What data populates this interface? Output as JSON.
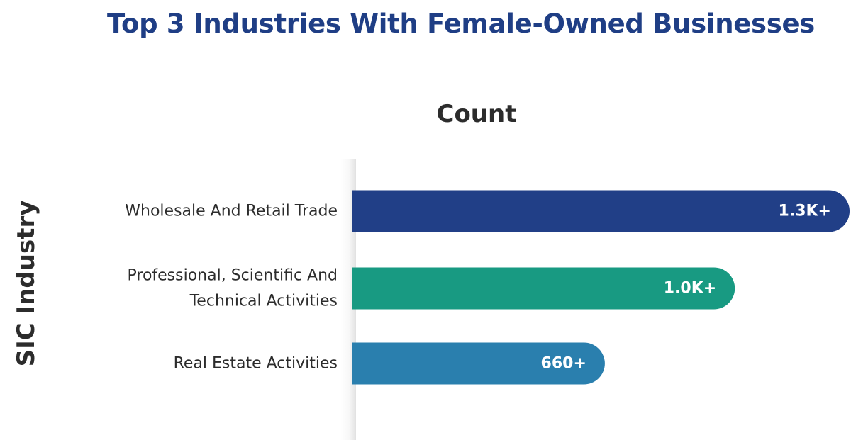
{
  "chart_data": {
    "type": "bar",
    "orientation": "horizontal",
    "title": "Top 3 Industries With Female-Owned Businesses",
    "xlabel": "Count",
    "ylabel": "SIC Industry",
    "categories": [
      [
        "Wholesale And Retail Trade"
      ],
      [
        "Professional, Scientific And",
        "Technical Activities"
      ],
      [
        "Real Estate Activities"
      ]
    ],
    "values": [
      1300,
      1000,
      660
    ],
    "value_labels": [
      "1.3K+",
      "1.0K+",
      "660+"
    ],
    "colors": [
      "#213f87",
      "#189a82",
      "#2a7fae"
    ],
    "xlim": [
      0,
      1300
    ],
    "grid": false
  }
}
